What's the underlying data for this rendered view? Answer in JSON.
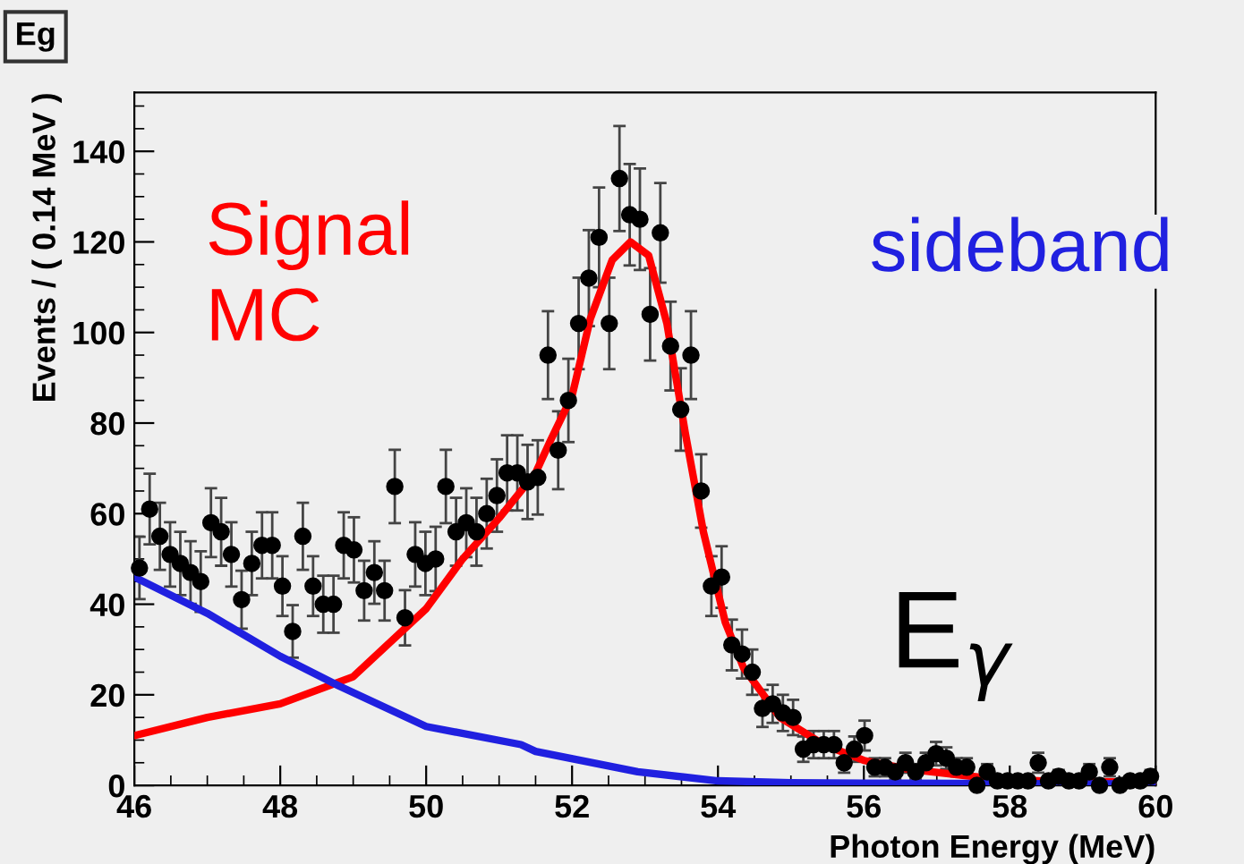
{
  "chart_data": {
    "type": "scatter",
    "title": "Eg",
    "xlabel": "Photon Energy (MeV)",
    "ylabel": "Events / ( 0.14 MeV )",
    "annotations": [
      "E$_{γ}$"
    ],
    "xlim": [
      46,
      60
    ],
    "xticks": [
      46,
      48,
      50,
      52,
      54,
      56,
      58,
      60
    ],
    "ylim": [
      0,
      153
    ],
    "yticks": [
      0,
      20,
      40,
      60,
      80,
      100,
      120,
      140
    ],
    "grid": false,
    "series": [
      {
        "marker": "circle",
        "color": "#000000",
        "x": [
          46.07,
          46.21,
          46.35,
          46.49,
          46.63,
          46.77,
          46.91,
          47.05,
          47.19,
          47.33,
          47.47,
          47.61,
          47.75,
          47.89,
          48.03,
          48.17,
          48.31,
          48.45,
          48.59,
          48.73,
          48.87,
          49.01,
          49.15,
          49.29,
          49.43,
          49.57,
          49.71,
          49.85,
          49.99,
          50.13,
          50.27,
          50.41,
          50.55,
          50.69,
          50.83,
          50.97,
          51.11,
          51.25,
          51.39,
          51.53,
          51.67,
          51.81,
          51.95,
          52.09,
          52.23,
          52.37,
          52.51,
          52.65,
          52.79,
          52.93,
          53.07,
          53.21,
          53.35,
          53.49,
          53.63,
          53.77,
          53.91,
          54.05,
          54.19,
          54.33,
          54.47,
          54.61,
          54.75,
          54.89,
          55.03,
          55.17,
          55.31,
          55.45,
          55.59,
          55.73,
          55.87,
          56.01,
          56.15,
          56.29,
          56.43,
          56.57,
          56.71,
          56.85,
          56.99,
          57.13,
          57.27,
          57.41,
          57.55,
          57.69,
          57.83,
          57.97,
          58.11,
          58.25,
          58.39,
          58.53,
          58.67,
          58.81,
          58.95,
          59.09,
          59.23,
          59.37,
          59.51,
          59.65,
          59.79,
          59.93
        ],
        "values": [
          48,
          61,
          55,
          51,
          49,
          47,
          45,
          58,
          56,
          51,
          41,
          49,
          53,
          53,
          44,
          34,
          55,
          44,
          40,
          40,
          53,
          52,
          43,
          47,
          43,
          66,
          37,
          51,
          49,
          50,
          66,
          56,
          58,
          56,
          60,
          64,
          69,
          69,
          67,
          68,
          95,
          74,
          85,
          102,
          112,
          121,
          102,
          134,
          126,
          125,
          104,
          122,
          97,
          83,
          95,
          65,
          44,
          46,
          31,
          29,
          25,
          17,
          18,
          16,
          15,
          8,
          9,
          9,
          9,
          5,
          8,
          11,
          4,
          4,
          3,
          5,
          3,
          5,
          7,
          6,
          4,
          4,
          0,
          3,
          1,
          1,
          1,
          1,
          5,
          1,
          2,
          1,
          1,
          3,
          0,
          4,
          0,
          1,
          1,
          2
        ],
        "errors": [
          6.9,
          7.8,
          7.4,
          7.1,
          7.0,
          6.9,
          6.7,
          7.6,
          7.5,
          7.1,
          6.4,
          7.0,
          7.3,
          7.3,
          6.6,
          5.8,
          7.4,
          6.6,
          6.3,
          6.3,
          7.3,
          7.2,
          6.6,
          6.9,
          6.6,
          8.1,
          6.1,
          7.1,
          7.0,
          7.1,
          8.1,
          7.5,
          7.6,
          7.5,
          7.7,
          8.0,
          8.3,
          8.3,
          8.2,
          8.2,
          9.7,
          8.6,
          9.2,
          10.1,
          10.6,
          11.0,
          10.1,
          11.6,
          11.2,
          11.2,
          10.2,
          11.0,
          9.8,
          9.1,
          9.7,
          8.1,
          6.6,
          6.8,
          5.6,
          5.4,
          5.0,
          4.1,
          4.2,
          4.0,
          3.9,
          2.8,
          3.0,
          3.0,
          3.0,
          2.2,
          2.8,
          3.3,
          2.0,
          2.0,
          1.7,
          2.2,
          1.7,
          2.2,
          2.6,
          2.4,
          2.0,
          2.0,
          null,
          1.7,
          1.0,
          1.0,
          1.0,
          1.0,
          2.2,
          1.0,
          1.4,
          1.0,
          1.0,
          1.7,
          null,
          2.0,
          null,
          1.0,
          1.0,
          1.4
        ]
      },
      {
        "type": "line",
        "name": "Signal\nMC",
        "color": "#ff0000",
        "x": [
          46,
          47,
          48,
          49,
          50,
          50.5,
          51,
          51.5,
          51.7,
          52,
          52.25,
          52.55,
          52.8,
          53.05,
          53.3,
          53.55,
          53.8,
          54.1,
          54.35,
          54.85,
          55.45,
          56,
          56.6,
          57.7,
          58.55,
          60
        ],
        "values": [
          11,
          15,
          18,
          24,
          39,
          50,
          59,
          69,
          76,
          86,
          103,
          116,
          120,
          117,
          102,
          78,
          56,
          36,
          26,
          15,
          9,
          5.5,
          3.6,
          1.6,
          0.9,
          0.7
        ]
      },
      {
        "type": "line",
        "name": "sideband",
        "color": "#2020e0",
        "x": [
          46,
          47,
          48,
          48.8,
          50,
          51.3,
          51.5,
          52.9,
          54,
          55,
          56,
          58,
          60
        ],
        "values": [
          46,
          38,
          28.5,
          22,
          13,
          9,
          7.5,
          3,
          1,
          0.6,
          0.5,
          0.4,
          0.3
        ]
      }
    ]
  }
}
